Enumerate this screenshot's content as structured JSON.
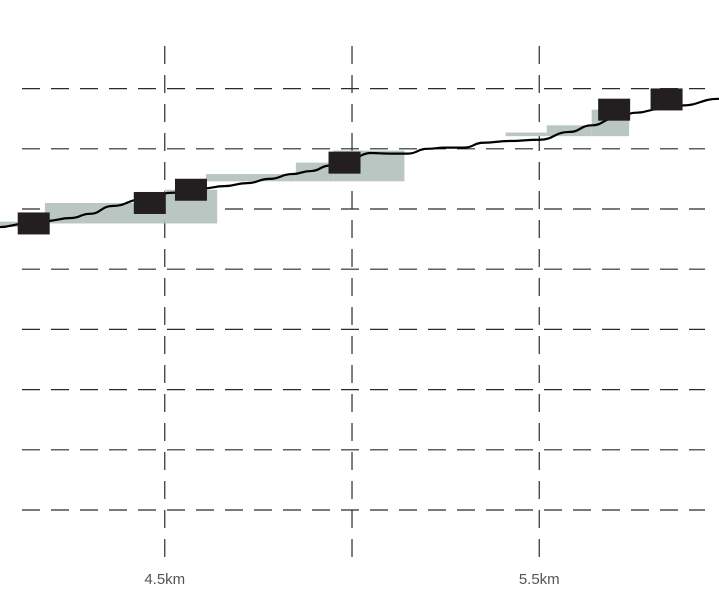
{
  "chart_data": {
    "type": "line",
    "title": "",
    "xlabel": "",
    "ylabel": "",
    "xlim": [
      4.06,
      5.98
    ],
    "ylim": [
      0,
      9
    ],
    "grid": true,
    "x_ticks": [
      {
        "value": 4.5,
        "label": "4.5km"
      },
      {
        "value": 5.0,
        "label": ""
      },
      {
        "value": 5.5,
        "label": "5.5km"
      }
    ],
    "y_grid_values": [
      1,
      2,
      3,
      4,
      5,
      6,
      7,
      8
    ],
    "series": [
      {
        "values": [
          [
            4.06,
            5.7
          ],
          [
            4.12,
            5.75
          ],
          [
            4.18,
            5.8
          ],
          [
            4.25,
            5.85
          ],
          [
            4.3,
            5.92
          ],
          [
            4.36,
            6.05
          ],
          [
            4.44,
            6.16
          ],
          [
            4.52,
            6.27
          ],
          [
            4.6,
            6.34
          ],
          [
            4.66,
            6.38
          ],
          [
            4.72,
            6.43
          ],
          [
            4.78,
            6.5
          ],
          [
            4.84,
            6.58
          ],
          [
            4.89,
            6.63
          ],
          [
            4.94,
            6.72
          ],
          [
            5.0,
            6.85
          ],
          [
            5.05,
            6.93
          ],
          [
            5.1,
            6.92
          ],
          [
            5.15,
            6.92
          ],
          [
            5.2,
            7.0
          ],
          [
            5.25,
            7.02
          ],
          [
            5.3,
            7.02
          ],
          [
            5.35,
            7.1
          ],
          [
            5.42,
            7.13
          ],
          [
            5.5,
            7.15
          ],
          [
            5.58,
            7.28
          ],
          [
            5.64,
            7.39
          ],
          [
            5.7,
            7.5
          ],
          [
            5.76,
            7.6
          ],
          [
            5.82,
            7.66
          ],
          [
            5.88,
            7.72
          ],
          [
            5.98,
            7.83
          ]
        ]
      }
    ],
    "highlight_bands": [
      {
        "x_start": 4.06,
        "x_end": 4.18,
        "y_start": 5.7,
        "y_end": 5.79
      },
      {
        "x_start": 4.18,
        "x_end": 4.5,
        "y_start": 5.76,
        "y_end": 6.1
      },
      {
        "x_start": 4.5,
        "x_end": 4.64,
        "y_start": 5.76,
        "y_end": 6.32
      },
      {
        "x_start": 4.61,
        "x_end": 4.85,
        "y_start": 6.46,
        "y_end": 6.58
      },
      {
        "x_start": 4.85,
        "x_end": 4.95,
        "y_start": 6.46,
        "y_end": 6.77
      },
      {
        "x_start": 4.95,
        "x_end": 5.14,
        "y_start": 6.46,
        "y_end": 6.97
      },
      {
        "x_start": 5.41,
        "x_end": 5.52,
        "y_start": 7.21,
        "y_end": 7.27
      },
      {
        "x_start": 5.52,
        "x_end": 5.64,
        "y_start": 7.21,
        "y_end": 7.39
      },
      {
        "x_start": 5.64,
        "x_end": 5.74,
        "y_start": 7.21,
        "y_end": 7.65
      }
    ],
    "markers": [
      {
        "x": 4.15,
        "y": 5.76
      },
      {
        "x": 4.46,
        "y": 6.1
      },
      {
        "x": 4.57,
        "y": 6.32
      },
      {
        "x": 4.98,
        "y": 6.77
      },
      {
        "x": 5.7,
        "y": 7.65
      },
      {
        "x": 5.84,
        "y": 7.82
      }
    ],
    "colors": {
      "line": "#000000",
      "band": "#b9c6c1",
      "marker": "#231f20",
      "grid": "#2b2b2b",
      "tick_label": "#555555"
    }
  }
}
